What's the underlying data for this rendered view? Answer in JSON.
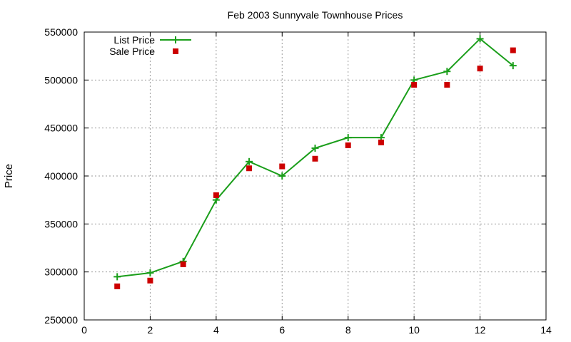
{
  "chart_data": {
    "type": "line",
    "title": "Feb 2003 Sunnyvale Townhouse Prices",
    "xlabel": "",
    "ylabel": "Price",
    "xlim": [
      0,
      14
    ],
    "ylim": [
      250000,
      550000
    ],
    "xticks": [
      0,
      2,
      4,
      6,
      8,
      10,
      12,
      14
    ],
    "yticks": [
      250000,
      300000,
      350000,
      400000,
      450000,
      500000,
      550000
    ],
    "grid": true,
    "legend_position": "top-left",
    "series": [
      {
        "name": "List Price",
        "style": "line-with-plus-markers",
        "color": "#1a9e1a",
        "x": [
          1,
          2,
          3,
          4,
          5,
          6,
          7,
          8,
          9,
          10,
          11,
          12,
          13
        ],
        "y": [
          295000,
          299000,
          311000,
          375000,
          415000,
          400000,
          429000,
          440000,
          440000,
          500000,
          509000,
          543000,
          515000
        ]
      },
      {
        "name": "Sale Price",
        "style": "square-markers",
        "color": "#cc0000",
        "x": [
          1,
          2,
          3,
          4,
          5,
          6,
          7,
          8,
          9,
          10,
          11,
          12,
          13
        ],
        "y": [
          285000,
          291000,
          308000,
          380000,
          408000,
          410000,
          418000,
          432000,
          435000,
          495000,
          495000,
          512000,
          531000
        ]
      }
    ]
  }
}
